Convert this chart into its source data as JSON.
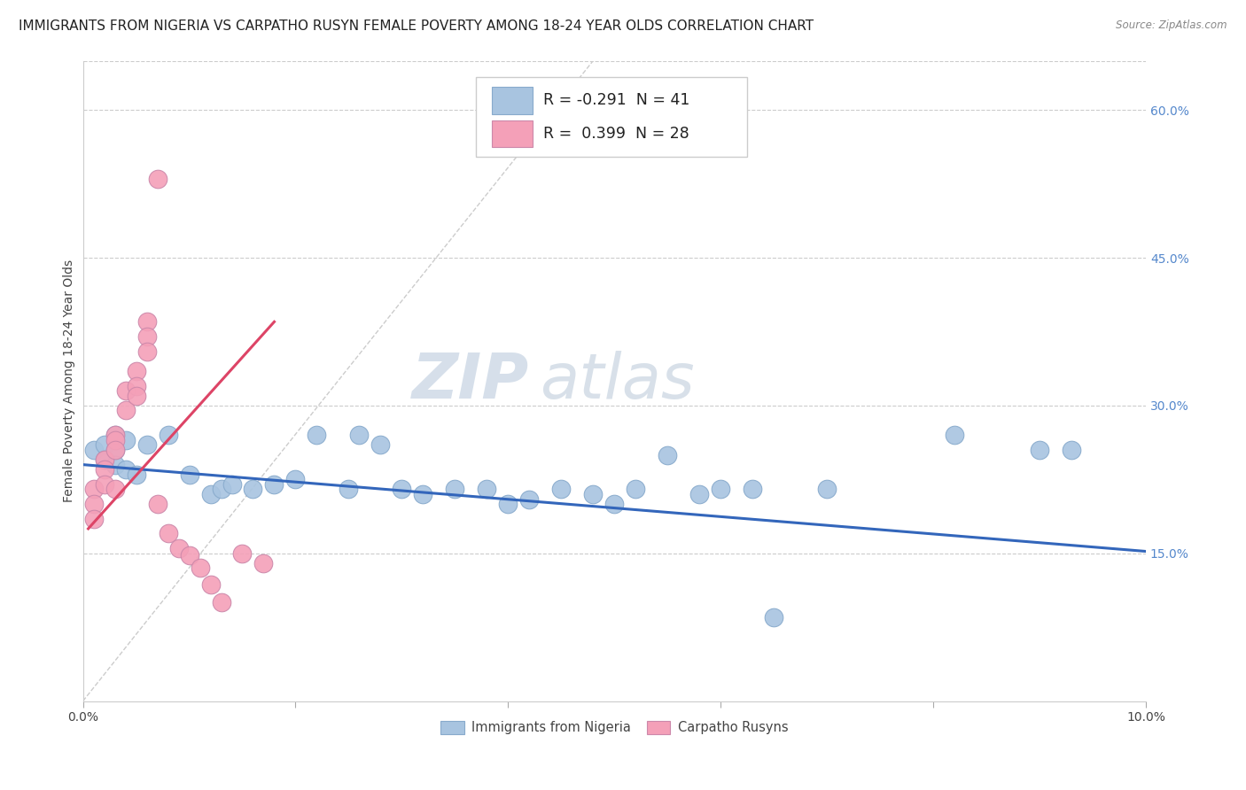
{
  "title": "IMMIGRANTS FROM NIGERIA VS CARPATHO RUSYN FEMALE POVERTY AMONG 18-24 YEAR OLDS CORRELATION CHART",
  "source": "Source: ZipAtlas.com",
  "ylabel": "Female Poverty Among 18-24 Year Olds",
  "xlim": [
    0.0,
    0.1
  ],
  "ylim": [
    0.0,
    0.65
  ],
  "xtick_positions": [
    0.0,
    0.02,
    0.04,
    0.06,
    0.08,
    0.1
  ],
  "xtick_labels": [
    "0.0%",
    "",
    "",
    "",
    "",
    "10.0%"
  ],
  "yticks_right": [
    0.15,
    0.3,
    0.45,
    0.6
  ],
  "ytick_labels_right": [
    "15.0%",
    "30.0%",
    "45.0%",
    "60.0%"
  ],
  "blue_R": "-0.291",
  "blue_N": "41",
  "pink_R": "0.399",
  "pink_N": "28",
  "blue_color": "#a8c4e0",
  "pink_color": "#f4a0b8",
  "blue_line_color": "#3366bb",
  "pink_line_color": "#dd4466",
  "watermark_zip": "ZIP",
  "watermark_atlas": "atlas",
  "blue_points_x": [
    0.001,
    0.002,
    0.002,
    0.003,
    0.003,
    0.003,
    0.004,
    0.004,
    0.005,
    0.006,
    0.008,
    0.01,
    0.012,
    0.013,
    0.014,
    0.016,
    0.018,
    0.02,
    0.022,
    0.025,
    0.026,
    0.028,
    0.03,
    0.032,
    0.035,
    0.038,
    0.04,
    0.042,
    0.045,
    0.048,
    0.05,
    0.052,
    0.055,
    0.058,
    0.06,
    0.063,
    0.065,
    0.07,
    0.082,
    0.09,
    0.093
  ],
  "blue_points_y": [
    0.255,
    0.26,
    0.245,
    0.27,
    0.255,
    0.24,
    0.265,
    0.235,
    0.23,
    0.26,
    0.27,
    0.23,
    0.21,
    0.215,
    0.22,
    0.215,
    0.22,
    0.225,
    0.27,
    0.215,
    0.27,
    0.26,
    0.215,
    0.21,
    0.215,
    0.215,
    0.2,
    0.205,
    0.215,
    0.21,
    0.2,
    0.215,
    0.25,
    0.21,
    0.215,
    0.215,
    0.085,
    0.215,
    0.27,
    0.255,
    0.255
  ],
  "pink_points_x": [
    0.001,
    0.001,
    0.001,
    0.002,
    0.002,
    0.002,
    0.003,
    0.003,
    0.003,
    0.003,
    0.004,
    0.004,
    0.005,
    0.005,
    0.005,
    0.006,
    0.006,
    0.006,
    0.007,
    0.007,
    0.008,
    0.009,
    0.01,
    0.011,
    0.012,
    0.013,
    0.015,
    0.017
  ],
  "pink_points_y": [
    0.215,
    0.2,
    0.185,
    0.245,
    0.235,
    0.22,
    0.27,
    0.265,
    0.255,
    0.215,
    0.315,
    0.295,
    0.335,
    0.32,
    0.31,
    0.385,
    0.37,
    0.355,
    0.53,
    0.2,
    0.17,
    0.155,
    0.148,
    0.135,
    0.118,
    0.1,
    0.15,
    0.14
  ],
  "blue_trend_x": [
    0.0,
    0.1
  ],
  "blue_trend_y": [
    0.24,
    0.152
  ],
  "pink_trend_x": [
    0.0005,
    0.018
  ],
  "pink_trend_y": [
    0.175,
    0.385
  ],
  "dashed_line_x1": 0.0,
  "dashed_line_y1": 0.0,
  "dashed_line_x2": 0.048,
  "dashed_line_y2": 0.65,
  "grid_color": "#cccccc",
  "bg_color": "#ffffff",
  "title_fontsize": 11,
  "axis_label_fontsize": 10,
  "tick_fontsize": 10,
  "watermark_fontsize_zip": 52,
  "watermark_fontsize_atlas": 52
}
